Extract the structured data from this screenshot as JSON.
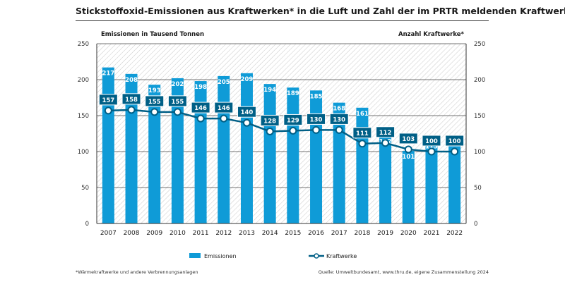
{
  "title": "Stickstoffoxid-Emissionen aus Kraftwerken* in die Luft und Zahl der im PRTR meldenden Kraftwerke*",
  "colors": {
    "bar": "#0f9bd7",
    "line": "#005f86",
    "box": "#005f86",
    "hatch": "#c9c9c9"
  },
  "footnote": "*Wärmekraftwerke und andere Verbrennungsanlagen",
  "source": "Quelle: Umweltbundesamt, www.thru.de, eigene Zusammenstellung 2024",
  "chart_data": {
    "type": "bar",
    "categories": [
      "2007",
      "2008",
      "2009",
      "2010",
      "2011",
      "2012",
      "2013",
      "2014",
      "2015",
      "2016",
      "2017",
      "2018",
      "2019",
      "2020",
      "2021",
      "2022"
    ],
    "series": [
      {
        "name": "Emissionen",
        "type": "bar",
        "axis": "left",
        "values": [
          217,
          208,
          193,
          202,
          198,
          205,
          209,
          194,
          189,
          185,
          168,
          161,
          122,
          101,
          115,
          121
        ]
      },
      {
        "name": "Kraftwerke",
        "type": "line",
        "axis": "right",
        "values": [
          157,
          158,
          155,
          155,
          146,
          146,
          140,
          128,
          129,
          130,
          130,
          111,
          112,
          103,
          100,
          100
        ]
      }
    ],
    "ylabel_left": "Emissionen in Tausend Tonnen",
    "ylabel_right": "Anzahl Kraftwerke*",
    "ylim_left": [
      0,
      250
    ],
    "ylim_right": [
      0,
      250
    ],
    "yticks": [
      0,
      50,
      100,
      150,
      200,
      250
    ],
    "legend": [
      "Emissionen",
      "Kraftwerke"
    ],
    "legend_position": "bottom"
  }
}
